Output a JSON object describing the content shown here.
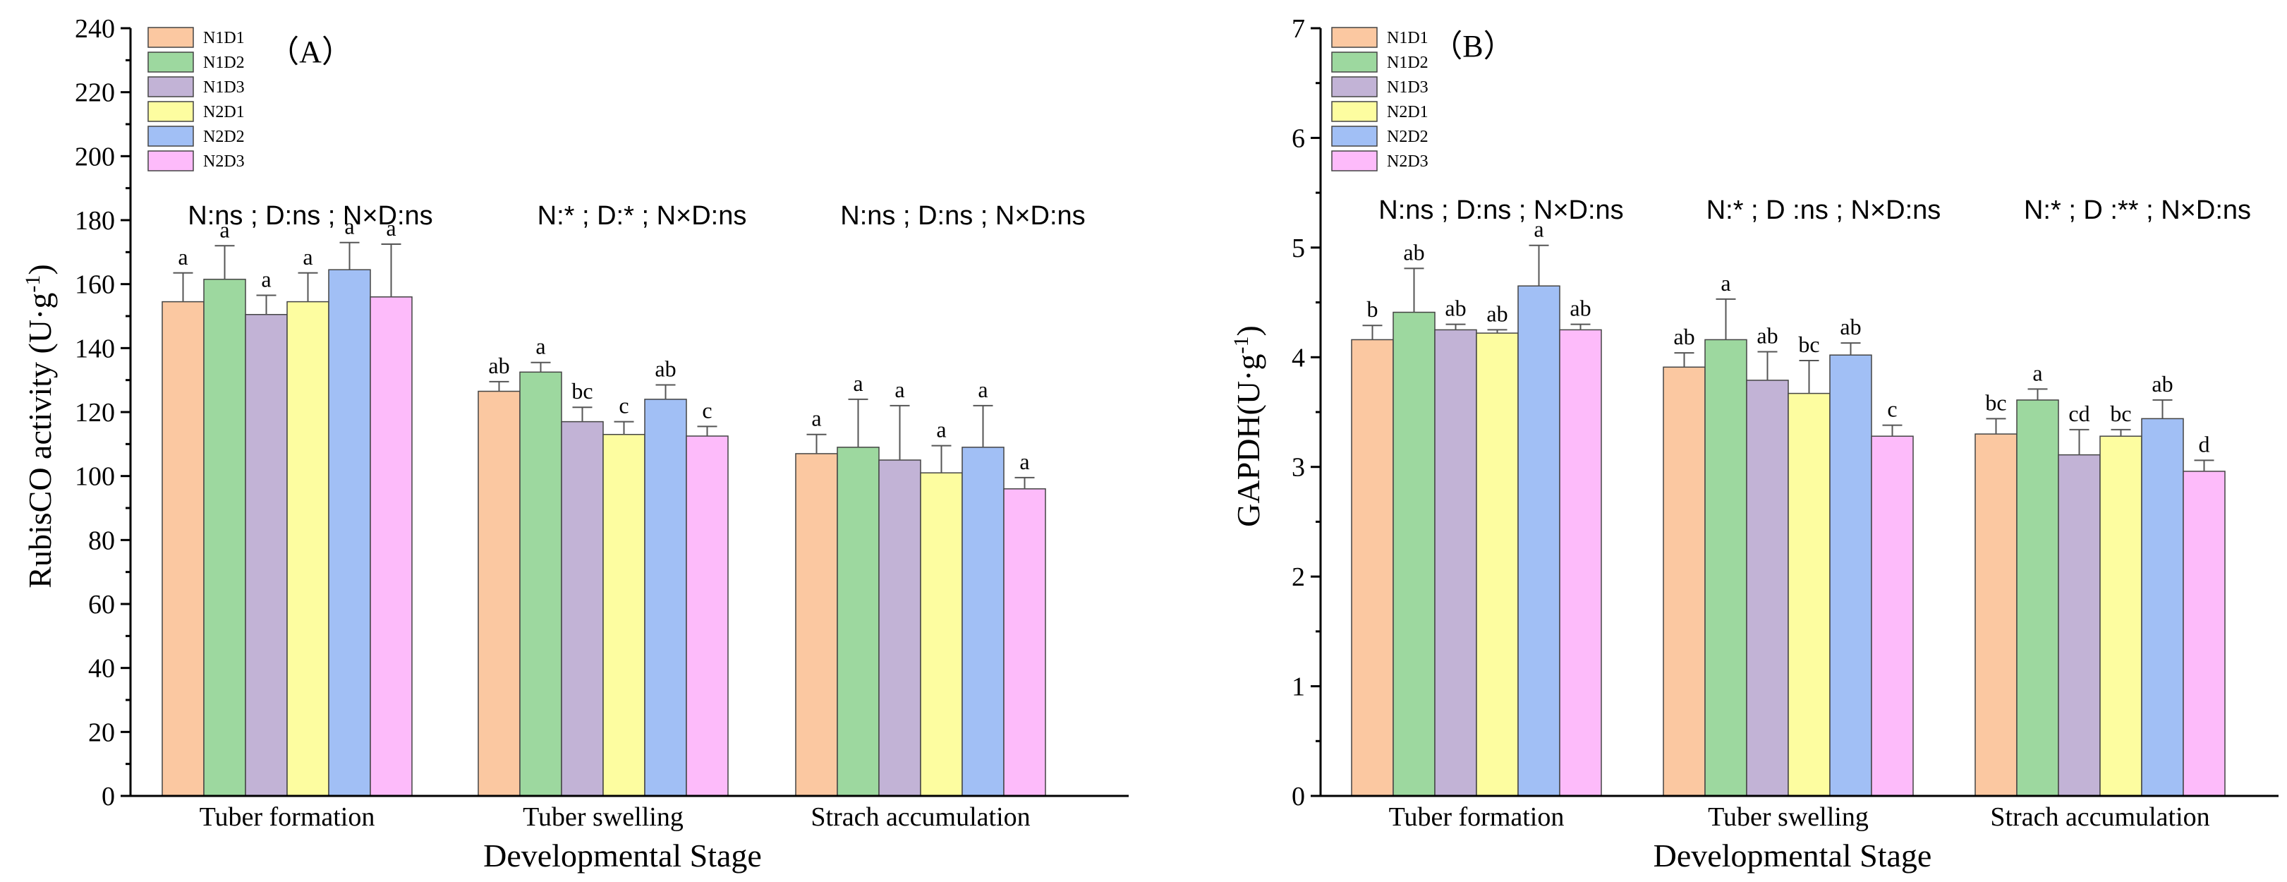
{
  "chart_data": [
    {
      "type": "bar",
      "panel_label": "（A）",
      "categories": [
        "Tuber formation",
        "Tuber swelling",
        "Strach accumulation"
      ],
      "xlabel": "Developmental  Stage",
      "ylabel_main": "RubisCO activity (U·g",
      "ylabel_sup": "-1",
      "ylabel_end": ")",
      "ylim": [
        0,
        240
      ],
      "yticks": [
        "0",
        "20",
        "40",
        "60",
        "80",
        "100",
        "120",
        "140",
        "160",
        "180",
        "200",
        "220",
        "240"
      ],
      "significance": [
        "N:ns ; D:ns ; N×D:ns",
        "N:* ; D:* ; N×D:ns",
        "N:ns ; D:ns ; N×D:ns"
      ],
      "series": [
        {
          "name": "N1D1",
          "color": "#FBC8A1",
          "values": [
            154.5,
            126.5,
            107
          ],
          "errors": [
            9,
            3,
            6
          ],
          "letters": [
            "a",
            "ab",
            "a"
          ]
        },
        {
          "name": "N1D2",
          "color": "#9DD89F",
          "values": [
            161.5,
            132.5,
            109
          ],
          "errors": [
            10.5,
            3,
            15
          ],
          "letters": [
            "a",
            "a",
            "a"
          ]
        },
        {
          "name": "N1D3",
          "color": "#C2B3D6",
          "values": [
            150.5,
            117,
            105
          ],
          "errors": [
            6,
            4.5,
            17
          ],
          "letters": [
            "a",
            "bc",
            "a"
          ]
        },
        {
          "name": "N2D1",
          "color": "#FDFDA0",
          "values": [
            154.5,
            113,
            101
          ],
          "errors": [
            9,
            4,
            8.5
          ],
          "letters": [
            "a",
            "c",
            "a"
          ]
        },
        {
          "name": "N2D2",
          "color": "#A1BFF5",
          "values": [
            164.5,
            124,
            109
          ],
          "errors": [
            8.5,
            4.5,
            13
          ],
          "letters": [
            "a",
            "ab",
            "a"
          ]
        },
        {
          "name": "N2D3",
          "color": "#FDBBFA",
          "values": [
            156,
            112.5,
            96
          ],
          "errors": [
            16.5,
            3,
            3.5
          ],
          "letters": [
            "a",
            "c",
            "a"
          ]
        }
      ]
    },
    {
      "type": "bar",
      "panel_label": "（B）",
      "categories": [
        "Tuber formation",
        "Tuber swelling",
        "Strach accumulation"
      ],
      "xlabel": "Developmental  Stage",
      "ylabel_main": "GAPDH(U·g",
      "ylabel_sup": "-1",
      "ylabel_end": ")",
      "ylim": [
        0,
        7
      ],
      "yticks": [
        "0",
        "1",
        "2",
        "3",
        "4",
        "5",
        "6",
        "7"
      ],
      "significance": [
        "N:ns ; D:ns ; N×D:ns",
        "N:* ; D :ns ; N×D:ns",
        "N:* ; D :** ; N×D:ns"
      ],
      "series": [
        {
          "name": "N1D1",
          "color": "#FBC8A1",
          "values": [
            4.16,
            3.91,
            3.3
          ],
          "errors": [
            0.13,
            0.13,
            0.14
          ],
          "letters": [
            "b",
            "ab",
            "bc"
          ]
        },
        {
          "name": "N1D2",
          "color": "#9DD89F",
          "values": [
            4.41,
            4.16,
            3.61
          ],
          "errors": [
            0.4,
            0.37,
            0.1
          ],
          "letters": [
            "ab",
            "a",
            "a"
          ]
        },
        {
          "name": "N1D3",
          "color": "#C2B3D6",
          "values": [
            4.25,
            3.79,
            3.11
          ],
          "errors": [
            0.05,
            0.26,
            0.23
          ],
          "letters": [
            "ab",
            "ab",
            "cd"
          ]
        },
        {
          "name": "N2D1",
          "color": "#FDFDA0",
          "values": [
            4.22,
            3.67,
            3.28
          ],
          "errors": [
            0.03,
            0.3,
            0.06
          ],
          "letters": [
            "ab",
            "bc",
            "bc"
          ]
        },
        {
          "name": "N2D2",
          "color": "#A1BFF5",
          "values": [
            4.65,
            4.02,
            3.44
          ],
          "errors": [
            0.37,
            0.11,
            0.17
          ],
          "letters": [
            "a",
            "ab",
            "ab"
          ]
        },
        {
          "name": "N2D3",
          "color": "#FDBBFA",
          "values": [
            4.25,
            3.28,
            2.96
          ],
          "errors": [
            0.05,
            0.1,
            0.1
          ],
          "letters": [
            "ab",
            "c",
            "d"
          ]
        }
      ]
    }
  ]
}
